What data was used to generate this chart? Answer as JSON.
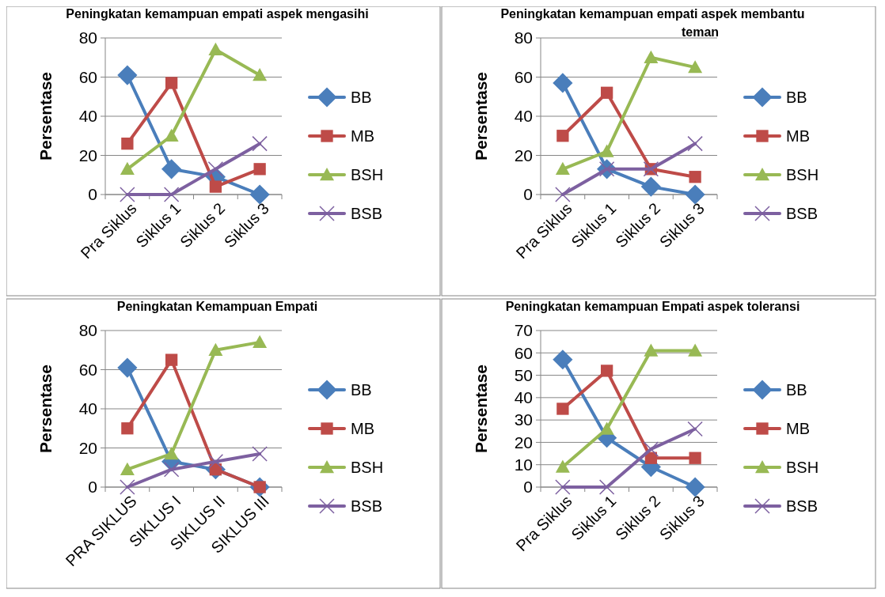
{
  "chart_data": [
    {
      "type": "line",
      "title": "Peningkatan kemampuan empati aspek mengasihi",
      "ylabel": "Persentase",
      "categories": [
        "Pra Siklus",
        "Siklus 1",
        "Siklus 2",
        "Siklus 3"
      ],
      "ylim": [
        0,
        80
      ],
      "yticks": [
        0,
        20,
        40,
        60,
        80
      ],
      "grid": "y",
      "legend": "right",
      "series": [
        {
          "name": "BB",
          "color": "#4a7ebb",
          "marker": "diamond",
          "values": [
            61,
            13,
            9,
            0
          ]
        },
        {
          "name": "MB",
          "color": "#be4b48",
          "marker": "square",
          "values": [
            26,
            57,
            4,
            13
          ]
        },
        {
          "name": "BSH",
          "color": "#98b954",
          "marker": "triangle",
          "values": [
            13,
            30,
            74,
            61
          ]
        },
        {
          "name": "BSB",
          "color": "#7d60a0",
          "marker": "cross",
          "values": [
            0,
            0,
            13,
            26
          ]
        }
      ]
    },
    {
      "type": "line",
      "title": "Peningkatan kemampuan empati aspek membantu teman",
      "ylabel": "Persentase",
      "categories": [
        "Pra Siklus",
        "Siklus 1",
        "Siklus 2",
        "Siklus 3"
      ],
      "ylim": [
        0,
        80
      ],
      "yticks": [
        0,
        20,
        40,
        60,
        80
      ],
      "grid": "y",
      "legend": "right",
      "series": [
        {
          "name": "BB",
          "color": "#4a7ebb",
          "marker": "diamond",
          "values": [
            57,
            13,
            4,
            0
          ]
        },
        {
          "name": "MB",
          "color": "#be4b48",
          "marker": "square",
          "values": [
            30,
            52,
            13,
            9
          ]
        },
        {
          "name": "BSH",
          "color": "#98b954",
          "marker": "triangle",
          "values": [
            13,
            22,
            70,
            65
          ]
        },
        {
          "name": "BSB",
          "color": "#7d60a0",
          "marker": "cross",
          "values": [
            0,
            13,
            13,
            26
          ]
        }
      ]
    },
    {
      "type": "line",
      "title": "Peningkatan Kemampuan Empati",
      "ylabel": "Persentase",
      "categories": [
        "PRA SIKLUS",
        "SIKLUS I",
        "SIKLUS II",
        "SIKLUS III"
      ],
      "ylim": [
        0,
        80
      ],
      "yticks": [
        0,
        20,
        40,
        60,
        80
      ],
      "grid": "y",
      "legend": "right",
      "series": [
        {
          "name": "BB",
          "color": "#4a7ebb",
          "marker": "diamond",
          "values": [
            61,
            13,
            9,
            0
          ]
        },
        {
          "name": "MB",
          "color": "#be4b48",
          "marker": "square",
          "values": [
            30,
            65,
            9,
            0
          ]
        },
        {
          "name": "BSH",
          "color": "#98b954",
          "marker": "triangle",
          "values": [
            9,
            17,
            70,
            74
          ]
        },
        {
          "name": "BSB",
          "color": "#7d60a0",
          "marker": "cross",
          "values": [
            0,
            9,
            13,
            17
          ]
        }
      ]
    },
    {
      "type": "line",
      "title": "Peningkatan kemampuan Empati aspek toleransi",
      "ylabel": "Persentase",
      "categories": [
        "Pra Siklus",
        "Siklus 1",
        "Siklus 2",
        "Siklus 3"
      ],
      "ylim": [
        0,
        70
      ],
      "yticks": [
        0,
        10,
        20,
        30,
        40,
        50,
        60,
        70
      ],
      "grid": "y",
      "legend": "right",
      "series": [
        {
          "name": "BB",
          "color": "#4a7ebb",
          "marker": "diamond",
          "values": [
            57,
            22,
            9,
            0
          ]
        },
        {
          "name": "MB",
          "color": "#be4b48",
          "marker": "square",
          "values": [
            35,
            52,
            13,
            13
          ]
        },
        {
          "name": "BSH",
          "color": "#98b954",
          "marker": "triangle",
          "values": [
            9,
            26,
            61,
            61
          ]
        },
        {
          "name": "BSB",
          "color": "#7d60a0",
          "marker": "cross",
          "values": [
            0,
            0,
            17,
            26
          ]
        }
      ]
    }
  ]
}
